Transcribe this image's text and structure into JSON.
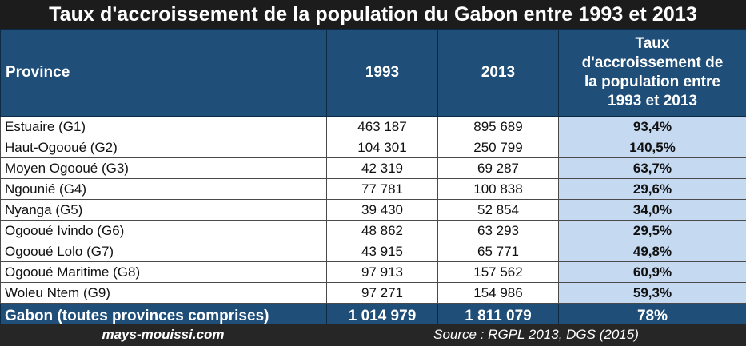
{
  "title": "Taux d'accroissement de la population du Gabon entre 1993 et 2013",
  "header": {
    "province": "Province",
    "y1993": "1993",
    "y2013": "2013",
    "rate_lines": [
      "Taux",
      "d'accroissement de",
      "la population entre",
      "1993 et 2013"
    ]
  },
  "rows": [
    {
      "province": "Estuaire (G1)",
      "y1993": "463 187",
      "y2013": "895 689",
      "rate": "93,4%"
    },
    {
      "province": "Haut-Ogooué (G2)",
      "y1993": "104 301",
      "y2013": "250 799",
      "rate": "140,5%"
    },
    {
      "province": "Moyen Ogooué (G3)",
      "y1993": "42 319",
      "y2013": "69 287",
      "rate": "63,7%"
    },
    {
      "province": "Ngounié (G4)",
      "y1993": "77 781",
      "y2013": "100 838",
      "rate": "29,6%"
    },
    {
      "province": "Nyanga (G5)",
      "y1993": "39 430",
      "y2013": "52 854",
      "rate": "34,0%"
    },
    {
      "province": "Ogooué Ivindo (G6)",
      "y1993": "48 862",
      "y2013": "63 293",
      "rate": "29,5%"
    },
    {
      "province": "Ogooué Lolo (G7)",
      "y1993": "43 915",
      "y2013": "65 771",
      "rate": "49,8%"
    },
    {
      "province": "Ogooué Maritime (G8)",
      "y1993": "97 913",
      "y2013": "157 562",
      "rate": "60,9%"
    },
    {
      "province": "Woleu Ntem (G9)",
      "y1993": "97 271",
      "y2013": "154 986",
      "rate": "59,3%"
    }
  ],
  "total": {
    "province": "Gabon (toutes provinces comprises)",
    "y1993": "1 014 979",
    "y2013": "1 811 079",
    "rate": "78%"
  },
  "footer": {
    "site": "mays-mouissi.com",
    "source": "Source : RGPL 2013, DGS (2015)"
  }
}
